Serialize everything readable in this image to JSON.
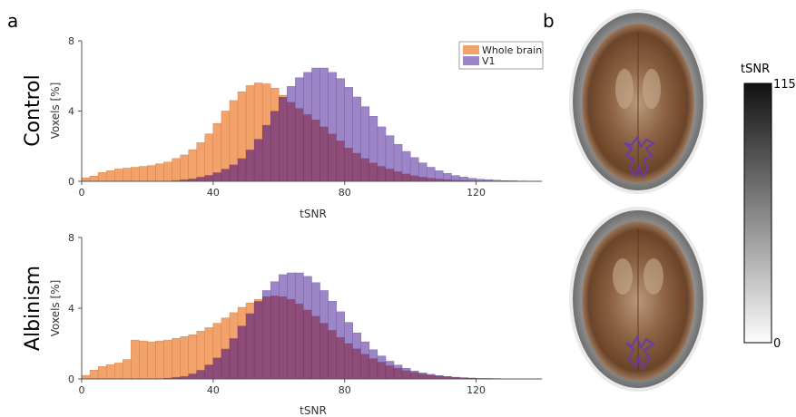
{
  "panel_labels": {
    "a": "a",
    "b": "b"
  },
  "colors": {
    "whole_brain": "#f2a36b",
    "v1": "#9c86c8",
    "overlap": "#8e4c78",
    "whole_brain_edge": "#d07a3e",
    "v1_edge": "#6f5a9f",
    "overlap_edge": "#6b2f57",
    "roi_outline": "#6a3aa8"
  },
  "colorbar": {
    "title": "tSNR",
    "max_label": "115",
    "min_label": "0",
    "range": [
      0,
      115
    ]
  },
  "brain_images": [
    "control-axial-slice",
    "albinism-axial-slice"
  ],
  "chart_data": [
    {
      "type": "bar",
      "row_label": "Control",
      "xlabel": "tSNR",
      "ylabel": "Voxels [%]",
      "xlim": [
        0,
        140
      ],
      "ylim": [
        0,
        8
      ],
      "xticks": [
        0,
        40,
        80,
        120
      ],
      "yticks": [
        0,
        4,
        8
      ],
      "bin_width": 2.5,
      "legend": {
        "position": "top-right",
        "entries": [
          "Whole brain",
          "V1"
        ]
      },
      "series": [
        {
          "name": "Whole brain",
          "values": [
            0.2,
            0.3,
            0.5,
            0.6,
            0.7,
            0.75,
            0.8,
            0.85,
            0.9,
            1.0,
            1.1,
            1.3,
            1.5,
            1.8,
            2.2,
            2.7,
            3.3,
            4.0,
            4.6,
            5.1,
            5.45,
            5.6,
            5.55,
            5.3,
            4.9,
            4.5,
            4.15,
            3.8,
            3.5,
            3.1,
            2.7,
            2.3,
            1.9,
            1.6,
            1.3,
            1.05,
            0.85,
            0.7,
            0.55,
            0.42,
            0.32,
            0.24,
            0.18,
            0.13,
            0.1,
            0.07,
            0.05,
            0.04,
            0.03,
            0.02,
            0.015,
            0.01,
            0.008,
            0.006,
            0.005,
            0.004
          ]
        },
        {
          "name": "V1",
          "values": [
            0,
            0,
            0,
            0,
            0,
            0,
            0,
            0,
            0,
            0,
            0,
            0.05,
            0.1,
            0.15,
            0.25,
            0.35,
            0.5,
            0.7,
            0.95,
            1.3,
            1.8,
            2.4,
            3.2,
            4.0,
            4.8,
            5.4,
            5.9,
            6.2,
            6.45,
            6.45,
            6.2,
            5.85,
            5.35,
            4.8,
            4.25,
            3.7,
            3.1,
            2.6,
            2.1,
            1.7,
            1.35,
            1.05,
            0.8,
            0.6,
            0.45,
            0.33,
            0.24,
            0.17,
            0.12,
            0.09,
            0.06,
            0.04,
            0.03,
            0.02,
            0.015,
            0.01
          ]
        }
      ]
    },
    {
      "type": "bar",
      "row_label": "Albinism",
      "xlabel": "tSNR",
      "ylabel": "Voxels [%]",
      "xlim": [
        0,
        140
      ],
      "ylim": [
        0,
        8
      ],
      "xticks": [
        0,
        40,
        80,
        120
      ],
      "yticks": [
        0,
        4,
        8
      ],
      "bin_width": 2.5,
      "series": [
        {
          "name": "Whole brain",
          "values": [
            0.2,
            0.5,
            0.7,
            0.8,
            0.9,
            1.1,
            2.2,
            2.15,
            2.1,
            2.15,
            2.2,
            2.3,
            2.4,
            2.5,
            2.7,
            2.9,
            3.15,
            3.45,
            3.75,
            4.05,
            4.3,
            4.5,
            4.65,
            4.7,
            4.65,
            4.5,
            4.25,
            3.9,
            3.55,
            3.15,
            2.75,
            2.35,
            2.0,
            1.7,
            1.4,
            1.15,
            0.95,
            0.75,
            0.6,
            0.47,
            0.37,
            0.28,
            0.21,
            0.16,
            0.12,
            0.09,
            0.07,
            0.05,
            0.04,
            0.03,
            0.02,
            0.015,
            0.01,
            0.008,
            0.006,
            0.005
          ]
        },
        {
          "name": "V1",
          "values": [
            0,
            0,
            0,
            0,
            0,
            0,
            0,
            0,
            0,
            0,
            0.05,
            0.1,
            0.15,
            0.3,
            0.5,
            0.8,
            1.2,
            1.7,
            2.3,
            3.0,
            3.7,
            4.4,
            5.0,
            5.5,
            5.9,
            6.0,
            6.0,
            5.8,
            5.45,
            5.0,
            4.4,
            3.8,
            3.2,
            2.6,
            2.1,
            1.65,
            1.3,
            1.0,
            0.78,
            0.6,
            0.45,
            0.34,
            0.26,
            0.19,
            0.14,
            0.1,
            0.07,
            0.05,
            0.035,
            0.025,
            0.018,
            0.012,
            0.008,
            0.006,
            0.004,
            0.003
          ]
        }
      ]
    }
  ]
}
